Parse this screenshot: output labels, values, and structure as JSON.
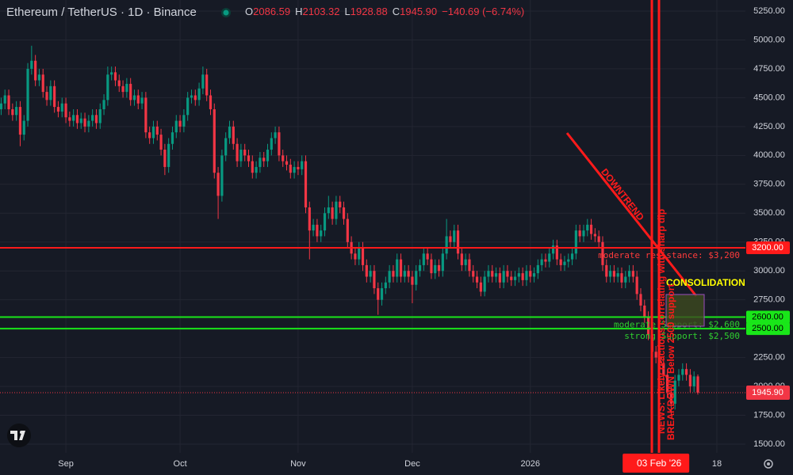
{
  "chart_data": {
    "type": "candlestick",
    "title": "Ethereum / TetherUS · 1D · Binance",
    "legend_values": [
      {
        "label": "O",
        "value": "2086.59"
      },
      {
        "label": "H",
        "value": "2103.32"
      },
      {
        "label": "L",
        "value": "1928.88"
      },
      {
        "label": "C",
        "value": "1945.90"
      }
    ],
    "change": "−140.69 (−6.74%)",
    "up_color": "#089981",
    "down_color": "#f23645",
    "x": [
      0,
      1,
      2,
      3,
      4,
      5,
      6,
      7,
      8,
      9,
      10,
      11,
      12,
      13,
      14,
      15,
      16,
      17,
      18,
      19,
      20,
      21,
      22,
      23,
      24,
      25,
      26,
      27,
      28,
      29,
      30,
      31,
      32,
      33,
      34,
      35,
      36,
      37,
      38,
      39,
      40,
      41,
      42,
      43,
      44,
      45,
      46,
      47,
      48,
      49,
      50,
      51,
      52,
      53,
      54,
      55,
      56,
      57,
      58,
      59,
      60,
      61,
      62,
      63,
      64,
      65,
      66,
      67,
      68,
      69,
      70,
      71,
      72,
      73,
      74,
      75,
      76,
      77,
      78,
      79,
      80,
      81,
      82,
      83,
      84,
      85,
      86,
      87,
      88,
      89,
      90,
      91,
      92,
      93,
      94,
      95,
      96,
      97,
      98,
      99,
      100,
      101,
      102,
      103,
      104,
      105,
      106,
      107,
      108,
      109,
      110,
      111,
      112,
      113,
      114,
      115,
      116,
      117,
      118,
      119,
      120,
      121,
      122,
      123,
      124,
      125,
      126,
      127,
      128,
      129,
      130,
      131,
      132,
      133,
      134,
      135,
      136,
      137,
      138,
      139,
      140,
      141,
      142,
      143,
      144,
      145,
      146,
      147,
      148,
      149,
      150,
      151,
      152,
      153,
      154,
      155,
      156,
      157,
      158,
      159,
      160,
      161,
      162,
      163,
      164,
      165,
      166,
      167,
      168,
      169,
      170,
      171,
      172,
      173,
      174,
      175,
      176,
      177,
      178,
      179,
      180,
      181,
      182,
      183
    ],
    "ohlc": [
      [
        4400,
        4500,
        4350,
        4450
      ],
      [
        4450,
        4570,
        4400,
        4520
      ],
      [
        4520,
        4570,
        4350,
        4400
      ],
      [
        4400,
        4450,
        4300,
        4350
      ],
      [
        4350,
        4470,
        4300,
        4420
      ],
      [
        4420,
        4470,
        4080,
        4180
      ],
      [
        4180,
        4350,
        4130,
        4300
      ],
      [
        4300,
        4800,
        4250,
        4750
      ],
      [
        4750,
        4950,
        4700,
        4820
      ],
      [
        4820,
        4870,
        4600,
        4650
      ],
      [
        4650,
        4750,
        4600,
        4700
      ],
      [
        4700,
        4750,
        4500,
        4550
      ],
      [
        4550,
        4600,
        4430,
        4480
      ],
      [
        4480,
        4650,
        4430,
        4600
      ],
      [
        4600,
        4650,
        4370,
        4420
      ],
      [
        4420,
        4470,
        4330,
        4380
      ],
      [
        4380,
        4500,
        4330,
        4450
      ],
      [
        4450,
        4500,
        4280,
        4330
      ],
      [
        4330,
        4380,
        4250,
        4300
      ],
      [
        4300,
        4400,
        4250,
        4350
      ],
      [
        4350,
        4400,
        4230,
        4280
      ],
      [
        4280,
        4370,
        4230,
        4320
      ],
      [
        4320,
        4370,
        4200,
        4250
      ],
      [
        4250,
        4350,
        4200,
        4300
      ],
      [
        4300,
        4400,
        4250,
        4350
      ],
      [
        4350,
        4400,
        4230,
        4280
      ],
      [
        4280,
        4450,
        4230,
        4400
      ],
      [
        4400,
        4530,
        4350,
        4480
      ],
      [
        4480,
        4770,
        4430,
        4700
      ],
      [
        4700,
        4770,
        4650,
        4720
      ],
      [
        4720,
        4770,
        4600,
        4650
      ],
      [
        4650,
        4700,
        4550,
        4600
      ],
      [
        4600,
        4650,
        4500,
        4550
      ],
      [
        4550,
        4670,
        4500,
        4620
      ],
      [
        4620,
        4670,
        4430,
        4480
      ],
      [
        4480,
        4570,
        4430,
        4520
      ],
      [
        4520,
        4570,
        4400,
        4450
      ],
      [
        4450,
        4550,
        4400,
        4500
      ],
      [
        4500,
        4550,
        4150,
        4200
      ],
      [
        4200,
        4250,
        4100,
        4150
      ],
      [
        4150,
        4300,
        4100,
        4250
      ],
      [
        4250,
        4300,
        4130,
        4180
      ],
      [
        4180,
        4230,
        4000,
        4050
      ],
      [
        4050,
        4100,
        3830,
        3900
      ],
      [
        3900,
        4150,
        3850,
        4100
      ],
      [
        4100,
        4250,
        4050,
        4200
      ],
      [
        4200,
        4350,
        4150,
        4300
      ],
      [
        4300,
        4350,
        4200,
        4250
      ],
      [
        4250,
        4400,
        4200,
        4350
      ],
      [
        4350,
        4550,
        4300,
        4500
      ],
      [
        4500,
        4570,
        4450,
        4520
      ],
      [
        4520,
        4570,
        4430,
        4480
      ],
      [
        4480,
        4630,
        4430,
        4580
      ],
      [
        4580,
        4770,
        4530,
        4700
      ],
      [
        4700,
        4750,
        4470,
        4520
      ],
      [
        4520,
        4570,
        4350,
        4400
      ],
      [
        4400,
        4450,
        3800,
        3850
      ],
      [
        3850,
        3900,
        3450,
        3650
      ],
      [
        3650,
        4050,
        3600,
        4000
      ],
      [
        4000,
        4200,
        3950,
        4150
      ],
      [
        4150,
        4300,
        4100,
        4250
      ],
      [
        4250,
        4300,
        4050,
        4100
      ],
      [
        4100,
        4150,
        3900,
        3950
      ],
      [
        3950,
        4100,
        3900,
        4050
      ],
      [
        4050,
        4100,
        3950,
        4000
      ],
      [
        4000,
        4050,
        3900,
        3950
      ],
      [
        3950,
        4000,
        3800,
        3850
      ],
      [
        3850,
        3950,
        3800,
        3900
      ],
      [
        3900,
        4030,
        3850,
        3980
      ],
      [
        3980,
        4030,
        3900,
        3950
      ],
      [
        3950,
        4100,
        3900,
        4050
      ],
      [
        4050,
        4200,
        4000,
        4150
      ],
      [
        4150,
        4250,
        4100,
        4200
      ],
      [
        4200,
        4250,
        3950,
        4000
      ],
      [
        4000,
        4050,
        3900,
        3950
      ],
      [
        3950,
        4000,
        3870,
        3920
      ],
      [
        3920,
        3970,
        3800,
        3850
      ],
      [
        3850,
        3950,
        3800,
        3900
      ],
      [
        3900,
        3950,
        3830,
        3880
      ],
      [
        3880,
        4000,
        3830,
        3950
      ],
      [
        3950,
        4000,
        3500,
        3550
      ],
      [
        3550,
        3600,
        3100,
        3350
      ],
      [
        3350,
        3450,
        3300,
        3400
      ],
      [
        3400,
        3450,
        3250,
        3300
      ],
      [
        3300,
        3400,
        3250,
        3350
      ],
      [
        3350,
        3550,
        3300,
        3500
      ],
      [
        3500,
        3650,
        3450,
        3550
      ],
      [
        3550,
        3600,
        3400,
        3450
      ],
      [
        3450,
        3650,
        3400,
        3600
      ],
      [
        3600,
        3650,
        3500,
        3550
      ],
      [
        3550,
        3600,
        3400,
        3450
      ],
      [
        3450,
        3500,
        3200,
        3250
      ],
      [
        3250,
        3300,
        3100,
        3150
      ],
      [
        3150,
        3200,
        3050,
        3100
      ],
      [
        3100,
        3250,
        3050,
        3200
      ],
      [
        3200,
        3250,
        3000,
        3050
      ],
      [
        3050,
        3100,
        2900,
        2950
      ],
      [
        2950,
        3050,
        2900,
        3000
      ],
      [
        3000,
        3050,
        2800,
        2850
      ],
      [
        2850,
        2900,
        2620,
        2750
      ],
      [
        2750,
        2900,
        2700,
        2850
      ],
      [
        2850,
        2950,
        2800,
        2900
      ],
      [
        2900,
        3050,
        2850,
        3000
      ],
      [
        3000,
        3050,
        2900,
        2950
      ],
      [
        2950,
        3150,
        2900,
        3100
      ],
      [
        3100,
        3150,
        2900,
        2950
      ],
      [
        2950,
        3050,
        2900,
        3000
      ],
      [
        3000,
        3050,
        2900,
        2950
      ],
      [
        2950,
        3000,
        2720,
        2880
      ],
      [
        2880,
        3050,
        2830,
        3000
      ],
      [
        3000,
        3100,
        2950,
        3050
      ],
      [
        3050,
        3200,
        3000,
        3150
      ],
      [
        3150,
        3200,
        3050,
        3100
      ],
      [
        3100,
        3150,
        2930,
        2980
      ],
      [
        2980,
        3100,
        2930,
        3050
      ],
      [
        3050,
        3100,
        2950,
        3000
      ],
      [
        3000,
        3200,
        2950,
        3150
      ],
      [
        3150,
        3450,
        3100,
        3300
      ],
      [
        3300,
        3350,
        3200,
        3250
      ],
      [
        3250,
        3400,
        3200,
        3350
      ],
      [
        3350,
        3400,
        3100,
        3150
      ],
      [
        3150,
        3200,
        3000,
        3050
      ],
      [
        3050,
        3150,
        3000,
        3100
      ],
      [
        3100,
        3150,
        2950,
        3000
      ],
      [
        3000,
        3050,
        2900,
        2950
      ],
      [
        2950,
        3000,
        2850,
        2900
      ],
      [
        2900,
        2950,
        2780,
        2820
      ],
      [
        2820,
        3000,
        2780,
        2950
      ],
      [
        2950,
        3050,
        2900,
        3000
      ],
      [
        3000,
        3050,
        2900,
        2950
      ],
      [
        2950,
        3030,
        2900,
        2980
      ],
      [
        2980,
        3030,
        2850,
        2900
      ],
      [
        2900,
        3050,
        2850,
        3000
      ],
      [
        3000,
        3050,
        2900,
        2950
      ],
      [
        2950,
        3000,
        2870,
        2920
      ],
      [
        2920,
        3000,
        2870,
        2950
      ],
      [
        2950,
        3030,
        2900,
        2980
      ],
      [
        2980,
        3030,
        2870,
        2920
      ],
      [
        2920,
        3050,
        2870,
        3000
      ],
      [
        3000,
        3050,
        2900,
        2950
      ],
      [
        2950,
        3030,
        2900,
        2980
      ],
      [
        2980,
        3100,
        2930,
        3050
      ],
      [
        3050,
        3150,
        3000,
        3100
      ],
      [
        3100,
        3150,
        3030,
        3080
      ],
      [
        3080,
        3200,
        3030,
        3150
      ],
      [
        3150,
        3270,
        3100,
        3220
      ],
      [
        3220,
        3270,
        3050,
        3100
      ],
      [
        3100,
        3150,
        3000,
        3050
      ],
      [
        3050,
        3130,
        3000,
        3080
      ],
      [
        3080,
        3150,
        3030,
        3100
      ],
      [
        3100,
        3200,
        3050,
        3150
      ],
      [
        3150,
        3400,
        3100,
        3350
      ],
      [
        3350,
        3400,
        3250,
        3300
      ],
      [
        3300,
        3400,
        3250,
        3350
      ],
      [
        3350,
        3450,
        3300,
        3400
      ],
      [
        3400,
        3450,
        3270,
        3320
      ],
      [
        3320,
        3370,
        3250,
        3300
      ],
      [
        3300,
        3350,
        3200,
        3250
      ],
      [
        3250,
        3300,
        3000,
        3050
      ],
      [
        3050,
        3100,
        2900,
        2950
      ],
      [
        2950,
        3050,
        2900,
        3000
      ],
      [
        3000,
        3050,
        2900,
        2950
      ],
      [
        2950,
        3030,
        2900,
        2980
      ],
      [
        2980,
        3030,
        2850,
        2900
      ],
      [
        2900,
        3000,
        2850,
        2950
      ],
      [
        2950,
        3050,
        2900,
        3000
      ],
      [
        3000,
        3050,
        2900,
        2950
      ],
      [
        2950,
        3000,
        2750,
        2800
      ],
      [
        2800,
        2850,
        2650,
        2700
      ],
      [
        2700,
        2750,
        2550,
        2600
      ],
      [
        2600,
        2650,
        2400,
        2450
      ],
      [
        2450,
        2500,
        2250,
        2300
      ],
      [
        2300,
        2350,
        2200,
        2250
      ],
      [
        2250,
        2300,
        2150,
        2200
      ],
      [
        2200,
        2250,
        2050,
        2100
      ],
      [
        2100,
        2150,
        1900,
        1950
      ],
      [
        1950,
        2000,
        1750,
        1850
      ],
      [
        1850,
        2100,
        1800,
        2050
      ],
      [
        2050,
        2150,
        2000,
        2100
      ],
      [
        2100,
        2200,
        2050,
        2150
      ],
      [
        2150,
        2200,
        2050,
        2100
      ],
      [
        2100,
        2150,
        1950,
        2000
      ],
      [
        2000,
        2130,
        1950,
        2086.59
      ],
      [
        2086.59,
        2103.32,
        1928.88,
        1945.9
      ]
    ],
    "xlim": [
      -0.3,
      195.5
    ],
    "xticks": [
      {
        "value": 17,
        "label": "Sep"
      },
      {
        "value": 47,
        "label": "Oct"
      },
      {
        "value": 78,
        "label": "Nov"
      },
      {
        "value": 108,
        "label": "Dec"
      },
      {
        "value": 139,
        "label": "2026"
      },
      {
        "value": 188,
        "label": "18"
      }
    ],
    "ylim": [
      1424.6,
      5346
    ],
    "yticks": [
      {
        "value": 1500,
        "label": "1500.00"
      },
      {
        "value": 1750,
        "label": "1750.00"
      },
      {
        "value": 2000,
        "label": "2000.00"
      },
      {
        "value": 2250,
        "label": "2250.00"
      },
      {
        "value": 2500,
        "label": "2500.00"
      },
      {
        "value": 2750,
        "label": "2750.00"
      },
      {
        "value": 3000,
        "label": "3000.00"
      },
      {
        "value": 3250,
        "label": "3250.00"
      },
      {
        "value": 3500,
        "label": "3500.00"
      },
      {
        "value": 3750,
        "label": "3750.00"
      },
      {
        "value": 4000,
        "label": "4000.00"
      },
      {
        "value": 4250,
        "label": "4250.00"
      },
      {
        "value": 4500,
        "label": "4500.00"
      },
      {
        "value": 4750,
        "label": "4750.00"
      },
      {
        "value": 5000,
        "label": "5000.00"
      },
      {
        "value": 5250,
        "label": "5250.00"
      }
    ],
    "grid": true,
    "levels": [
      {
        "value": 3200,
        "label": "3200.00",
        "note": "moderate resistance: $3,200",
        "color": "#ff1a1a",
        "note_color": "#ff3b3b",
        "text_color": "#ffffff"
      },
      {
        "value": 2600,
        "label": "2600.00",
        "note": "moderate Support: $2,600",
        "color": "#19e619",
        "note_color": "#2fcf2f",
        "text_color": "#000000"
      },
      {
        "value": 2500,
        "label": "2500.00",
        "note": "strong Support: $2,500",
        "color": "#19e619",
        "note_color": "#2fcf2f",
        "text_color": "#000000"
      }
    ],
    "last_price": {
      "value": 1945.9,
      "label": "1945.90"
    },
    "crosshair": {
      "value": 172,
      "label": "03 Feb '26"
    },
    "annotations": {
      "downtrend": "DOWNTREND",
      "consolidation": "CONSOLIDATION",
      "news": "NEWS: Likely reactions correlating with sharp dip",
      "breakdown": "BREAKDOWN Below 2500 support"
    }
  }
}
